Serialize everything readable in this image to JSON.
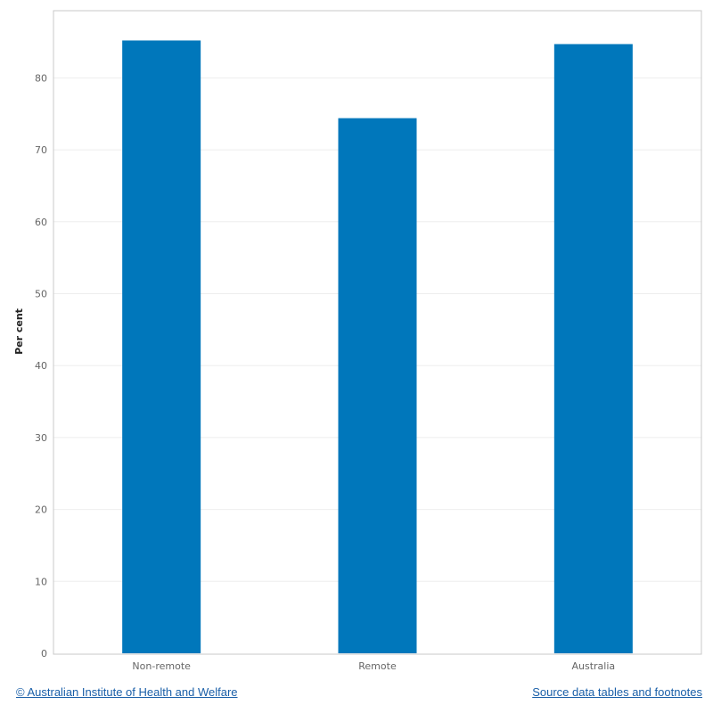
{
  "chart_data": {
    "type": "bar",
    "categories": [
      "Non-remote",
      "Remote",
      "Australia"
    ],
    "values": [
      85.2,
      74.4,
      84.7
    ],
    "title": "",
    "xlabel": "",
    "ylabel": "Per cent",
    "ylim": [
      0,
      90
    ],
    "yticks": [
      0,
      10,
      20,
      30,
      40,
      50,
      60,
      70,
      80
    ],
    "grid": true,
    "bar_color": "#0077bb"
  },
  "footer": {
    "copyright": "© Australian Institute of Health and Welfare",
    "source": "Source data tables and footnotes"
  }
}
